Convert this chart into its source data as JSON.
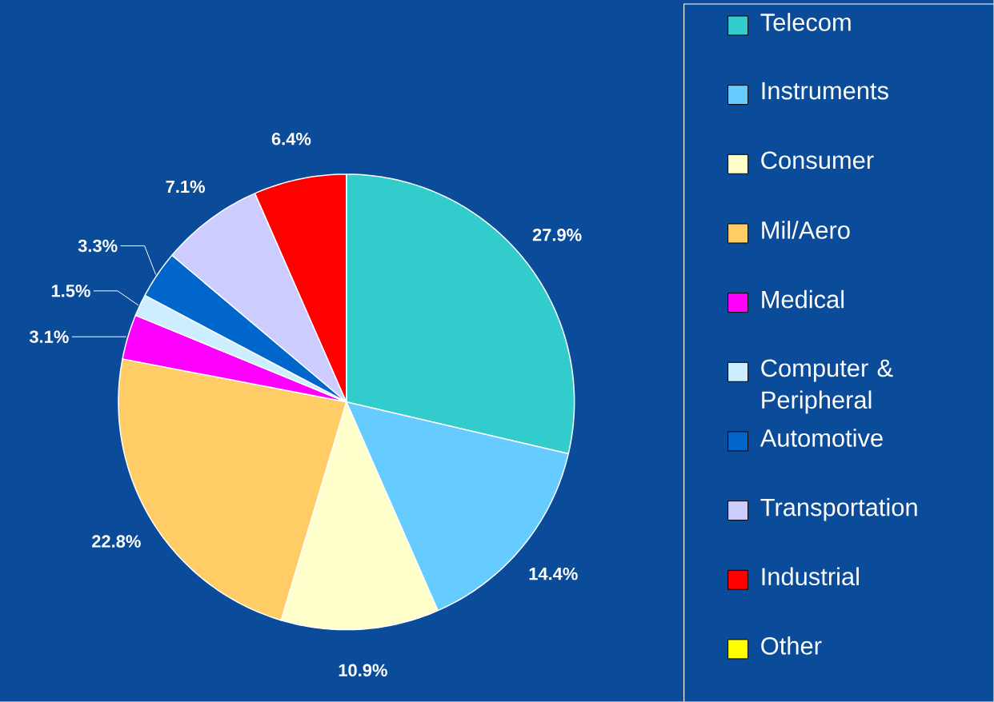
{
  "chart_data": {
    "type": "pie",
    "categories": [
      "Telecom",
      "Instruments",
      "Consumer",
      "Mil/Aero",
      "Medical",
      "Computer & Peripheral",
      "Automotive",
      "Transportation",
      "Industrial",
      "Other"
    ],
    "values": [
      27.9,
      14.4,
      10.9,
      22.8,
      3.1,
      1.5,
      3.3,
      7.1,
      6.4,
      null
    ],
    "colors": [
      "#33cccc",
      "#66ccff",
      "#ffffcc",
      "#ffcc66",
      "#ff00ff",
      "#cceeff",
      "#0066cc",
      "#ccccff",
      "#ff0000",
      "#ffff00"
    ],
    "value_labels": [
      "27.9%",
      "14.4%",
      "10.9%",
      "22.8%",
      "3.1%",
      "1.5%",
      "3.3%",
      "7.1%",
      "6.4%",
      null
    ],
    "legend": "right"
  }
}
